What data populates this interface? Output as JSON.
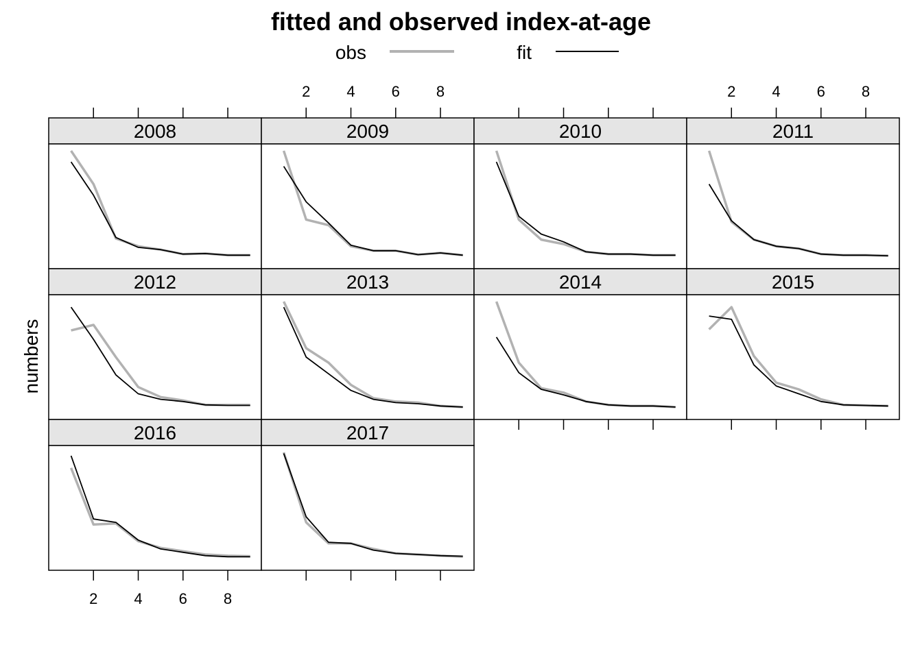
{
  "chart_data": {
    "type": "line",
    "title": "fitted and observed index-at-age",
    "ylabel": "numbers",
    "xlabel": "",
    "x_ticks": [
      2,
      4,
      6,
      8
    ],
    "xlim": [
      0,
      9.5
    ],
    "ages": [
      1,
      2,
      3,
      4,
      5,
      6,
      7,
      8,
      9
    ],
    "legend": {
      "position": "top",
      "entries": [
        {
          "name": "obs",
          "color": "#b2b2b2"
        },
        {
          "name": "fit",
          "color": "#000000"
        }
      ]
    },
    "layout": {
      "columns": 4,
      "rows": 3
    },
    "panels": [
      {
        "label": "2008",
        "obs": [
          1.0,
          0.7,
          0.21,
          0.14,
          0.11,
          0.07,
          0.075,
          0.06,
          0.06
        ],
        "fit": [
          0.9,
          0.6,
          0.22,
          0.13,
          0.11,
          0.07,
          0.075,
          0.06,
          0.06
        ]
      },
      {
        "label": "2009",
        "obs": [
          1.0,
          0.38,
          0.33,
          0.14,
          0.1,
          0.1,
          0.065,
          0.08,
          0.06
        ],
        "fit": [
          0.86,
          0.54,
          0.35,
          0.15,
          0.1,
          0.1,
          0.065,
          0.08,
          0.06
        ]
      },
      {
        "label": "2010",
        "obs": [
          1.0,
          0.38,
          0.2,
          0.16,
          0.09,
          0.07,
          0.07,
          0.06,
          0.06
        ],
        "fit": [
          0.9,
          0.41,
          0.25,
          0.18,
          0.09,
          0.07,
          0.07,
          0.06,
          0.06
        ]
      },
      {
        "label": "2011",
        "obs": [
          1.0,
          0.36,
          0.2,
          0.14,
          0.12,
          0.07,
          0.06,
          0.06,
          0.055
        ],
        "fit": [
          0.7,
          0.37,
          0.2,
          0.14,
          0.12,
          0.07,
          0.06,
          0.06,
          0.055
        ]
      },
      {
        "label": "2012",
        "obs": [
          0.74,
          0.79,
          0.5,
          0.23,
          0.14,
          0.11,
          0.07,
          0.07,
          0.07
        ],
        "fit": [
          0.95,
          0.66,
          0.34,
          0.17,
          0.12,
          0.1,
          0.07,
          0.065,
          0.065
        ]
      },
      {
        "label": "2013",
        "obs": [
          1.0,
          0.58,
          0.45,
          0.25,
          0.13,
          0.1,
          0.09,
          0.06,
          0.05
        ],
        "fit": [
          0.95,
          0.5,
          0.35,
          0.2,
          0.12,
          0.09,
          0.08,
          0.06,
          0.05
        ]
      },
      {
        "label": "2014",
        "obs": [
          1.0,
          0.45,
          0.22,
          0.18,
          0.1,
          0.07,
          0.06,
          0.06,
          0.05
        ],
        "fit": [
          0.68,
          0.36,
          0.21,
          0.16,
          0.1,
          0.07,
          0.06,
          0.06,
          0.05
        ]
      },
      {
        "label": "2015",
        "obs": [
          0.75,
          0.95,
          0.51,
          0.27,
          0.21,
          0.12,
          0.07,
          0.065,
          0.06
        ],
        "fit": [
          0.87,
          0.84,
          0.43,
          0.24,
          0.17,
          0.1,
          0.07,
          0.065,
          0.06
        ]
      },
      {
        "label": "2016",
        "obs": [
          0.86,
          0.35,
          0.36,
          0.2,
          0.14,
          0.11,
          0.08,
          0.07,
          0.065
        ],
        "fit": [
          0.97,
          0.4,
          0.37,
          0.21,
          0.13,
          0.1,
          0.07,
          0.06,
          0.06
        ]
      },
      {
        "label": "2017",
        "obs": [
          1.0,
          0.37,
          0.18,
          0.18,
          0.13,
          0.09,
          0.08,
          0.07,
          0.06
        ],
        "fit": [
          0.99,
          0.42,
          0.19,
          0.18,
          0.12,
          0.09,
          0.08,
          0.07,
          0.065
        ]
      }
    ]
  }
}
